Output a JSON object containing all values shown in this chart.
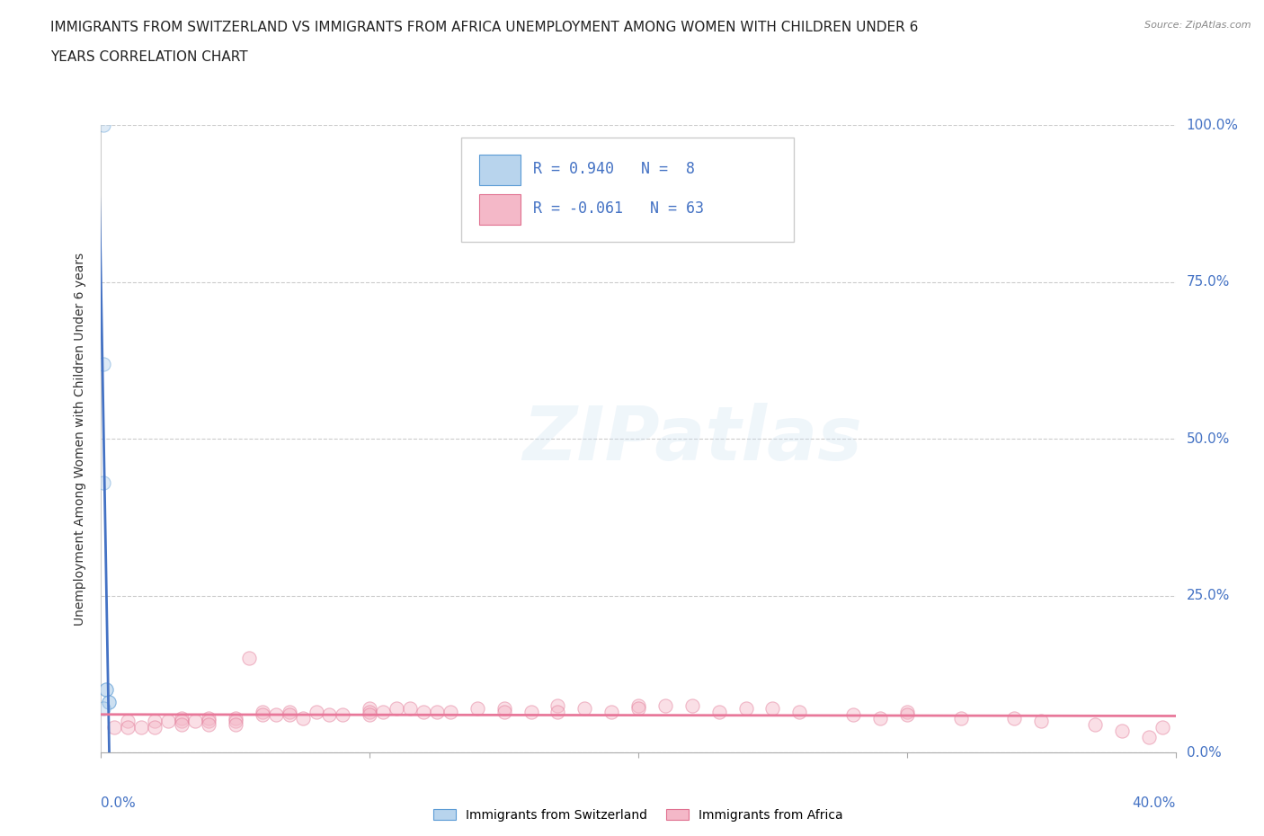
{
  "title_line1": "IMMIGRANTS FROM SWITZERLAND VS IMMIGRANTS FROM AFRICA UNEMPLOYMENT AMONG WOMEN WITH CHILDREN UNDER 6",
  "title_line2": "YEARS CORRELATION CHART",
  "source_text": "Source: ZipAtlas.com",
  "ylabel": "Unemployment Among Women with Children Under 6 years",
  "xlim": [
    0.0,
    0.4
  ],
  "ylim": [
    0.0,
    1.0
  ],
  "xticks": [
    0.0,
    0.1,
    0.2,
    0.3,
    0.4
  ],
  "yticks": [
    0.0,
    0.25,
    0.5,
    0.75,
    1.0
  ],
  "ytick_labels_right": [
    "0.0%",
    "25.0%",
    "50.0%",
    "75.0%",
    "100.0%"
  ],
  "switzerland_x": [
    0.001,
    0.001,
    0.001,
    0.002,
    0.002,
    0.003,
    0.003,
    0.001
  ],
  "switzerland_y": [
    1.0,
    0.62,
    0.43,
    0.1,
    0.1,
    0.08,
    0.08,
    0.07
  ],
  "switzerland_color": "#b8d4ed",
  "switzerland_edge_color": "#5b9bd5",
  "switzerland_R": 0.94,
  "switzerland_N": 8,
  "switzerland_line_color": "#4472c4",
  "africa_x": [
    0.005,
    0.01,
    0.01,
    0.015,
    0.02,
    0.02,
    0.025,
    0.03,
    0.03,
    0.03,
    0.035,
    0.04,
    0.04,
    0.04,
    0.05,
    0.05,
    0.05,
    0.055,
    0.06,
    0.06,
    0.065,
    0.07,
    0.07,
    0.075,
    0.08,
    0.085,
    0.09,
    0.1,
    0.1,
    0.1,
    0.105,
    0.11,
    0.115,
    0.12,
    0.125,
    0.13,
    0.14,
    0.15,
    0.15,
    0.16,
    0.17,
    0.17,
    0.18,
    0.19,
    0.2,
    0.2,
    0.21,
    0.22,
    0.23,
    0.24,
    0.25,
    0.26,
    0.28,
    0.29,
    0.3,
    0.3,
    0.32,
    0.34,
    0.35,
    0.37,
    0.38,
    0.395,
    0.39
  ],
  "africa_y": [
    0.04,
    0.05,
    0.04,
    0.04,
    0.05,
    0.04,
    0.05,
    0.055,
    0.05,
    0.045,
    0.05,
    0.055,
    0.05,
    0.045,
    0.055,
    0.05,
    0.045,
    0.15,
    0.065,
    0.06,
    0.06,
    0.065,
    0.06,
    0.055,
    0.065,
    0.06,
    0.06,
    0.07,
    0.065,
    0.06,
    0.065,
    0.07,
    0.07,
    0.065,
    0.065,
    0.065,
    0.07,
    0.07,
    0.065,
    0.065,
    0.075,
    0.065,
    0.07,
    0.065,
    0.075,
    0.07,
    0.075,
    0.075,
    0.065,
    0.07,
    0.07,
    0.065,
    0.06,
    0.055,
    0.065,
    0.06,
    0.055,
    0.055,
    0.05,
    0.045,
    0.035,
    0.04,
    0.025
  ],
  "africa_color": "#f4b8c8",
  "africa_edge_color": "#e07090",
  "africa_R": -0.061,
  "africa_N": 63,
  "africa_line_color": "#e8789a",
  "grid_color": "#cccccc",
  "background_color": "#ffffff",
  "legend_R_color": "#4472c4",
  "watermark": "ZIPatlas",
  "title_fontsize": 11,
  "axis_label_fontsize": 10,
  "tick_fontsize": 11,
  "marker_size": 120,
  "marker_alpha": 0.45
}
